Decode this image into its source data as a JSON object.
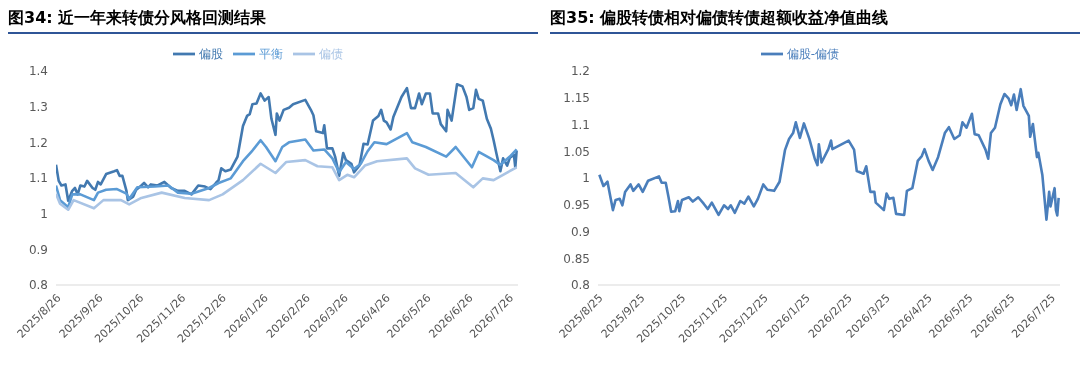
{
  "chart_data": [
    {
      "type": "line",
      "title": "图34: 近一年来转债分风格回测结果",
      "legend": "top",
      "xlim": [
        "2025-08-26",
        "2026-08-02"
      ],
      "xticks": [
        {
          "value": "2025-08-26",
          "label": "2025/8/26"
        },
        {
          "value": "2025-09-26",
          "label": "2025/9/26"
        },
        {
          "value": "2025-10-26",
          "label": "2025/10/26"
        },
        {
          "value": "2025-11-26",
          "label": "2025/11/26"
        },
        {
          "value": "2025-12-26",
          "label": "2025/12/26"
        },
        {
          "value": "2026-01-26",
          "label": "2026/1/26"
        },
        {
          "value": "2026-02-26",
          "label": "2026/2/26"
        },
        {
          "value": "2026-03-26",
          "label": "2026/3/26"
        },
        {
          "value": "2026-04-26",
          "label": "2026/4/26"
        },
        {
          "value": "2026-05-26",
          "label": "2026/5/26"
        },
        {
          "value": "2026-06-26",
          "label": "2026/6/26"
        },
        {
          "value": "2026-07-26",
          "label": "2026/7/26"
        }
      ],
      "ylim": [
        0.8,
        1.4
      ],
      "yticks": [
        0.8,
        0.9,
        1,
        1.1,
        1.2,
        1.3,
        1.4
      ],
      "series": [
        {
          "name": "偏股",
          "color": "#4279b0",
          "x": [
            "2025-08-26",
            "2025-08-28",
            "2025-08-30",
            "2025-09-02",
            "2025-09-04",
            "2025-09-07",
            "2025-09-09",
            "2025-09-11",
            "2025-09-13",
            "2025-09-16",
            "2025-09-18",
            "2025-09-22",
            "2025-09-24",
            "2025-09-26",
            "2025-09-28",
            "2025-10-02",
            "2025-10-08",
            "2025-10-10",
            "2025-10-12",
            "2025-10-14",
            "2025-10-17",
            "2025-10-18",
            "2025-10-22",
            "2025-10-24",
            "2025-10-28",
            "2025-10-30",
            "2025-11-02",
            "2025-11-04",
            "2025-11-09",
            "2025-11-14",
            "2025-11-19",
            "2025-11-24",
            "2025-11-29",
            "2025-12-04",
            "2025-12-09",
            "2025-12-14",
            "2025-12-18",
            "2025-12-22",
            "2025-12-24",
            "2025-12-26",
            "2025-12-29",
            "2026-01-02",
            "2026-01-07",
            "2026-01-11",
            "2026-01-14",
            "2026-01-16",
            "2026-01-18",
            "2026-01-21",
            "2026-01-24",
            "2026-01-27",
            "2026-01-30",
            "2026-02-01",
            "2026-02-04",
            "2026-02-05",
            "2026-02-07",
            "2026-02-10",
            "2026-02-14",
            "2026-02-17",
            "2026-02-26",
            "2026-03-02",
            "2026-03-04",
            "2026-03-06",
            "2026-03-11",
            "2026-03-12",
            "2026-03-14",
            "2026-03-18",
            "2026-03-20",
            "2026-03-23",
            "2026-03-26",
            "2026-03-28",
            "2026-04-01",
            "2026-04-03",
            "2026-04-07",
            "2026-04-10",
            "2026-04-13",
            "2026-04-17",
            "2026-04-21",
            "2026-04-23",
            "2026-04-25",
            "2026-04-27",
            "2026-04-30",
            "2026-05-02",
            "2026-05-08",
            "2026-05-12",
            "2026-05-15",
            "2026-05-18",
            "2026-05-21",
            "2026-05-23",
            "2026-05-26",
            "2026-05-29",
            "2026-05-31",
            "2026-06-04",
            "2026-06-06",
            "2026-06-10",
            "2026-06-11",
            "2026-06-14",
            "2026-06-18",
            "2026-06-22",
            "2026-06-25",
            "2026-06-27",
            "2026-06-30",
            "2026-07-02",
            "2026-07-04",
            "2026-07-07",
            "2026-07-10",
            "2026-07-13",
            "2026-07-15",
            "2026-07-17",
            "2026-07-20",
            "2026-07-22",
            "2026-07-25",
            "2026-07-27",
            "2026-07-30",
            "2026-07-31",
            "2026-08-01"
          ],
          "values": [
            1.137,
            1.092,
            1.079,
            1.082,
            1.036,
            1.064,
            1.072,
            1.054,
            1.079,
            1.076,
            1.092,
            1.072,
            1.067,
            1.089,
            1.082,
            1.111,
            1.119,
            1.122,
            1.106,
            1.106,
            1.064,
            1.038,
            1.048,
            1.066,
            1.079,
            1.086,
            1.074,
            1.082,
            1.079,
            1.089,
            1.072,
            1.064,
            1.064,
            1.054,
            1.079,
            1.076,
            1.069,
            1.086,
            1.094,
            1.127,
            1.119,
            1.124,
            1.16,
            1.246,
            1.274,
            1.279,
            1.307,
            1.309,
            1.337,
            1.317,
            1.327,
            1.266,
            1.221,
            1.281,
            1.261,
            1.291,
            1.297,
            1.307,
            1.319,
            1.292,
            1.276,
            1.231,
            1.226,
            1.248,
            1.183,
            1.183,
            1.16,
            1.106,
            1.17,
            1.15,
            1.14,
            1.116,
            1.135,
            1.196,
            1.194,
            1.261,
            1.274,
            1.291,
            1.261,
            1.256,
            1.236,
            1.271,
            1.327,
            1.352,
            1.296,
            1.296,
            1.337,
            1.307,
            1.337,
            1.337,
            1.281,
            1.281,
            1.251,
            1.231,
            1.291,
            1.261,
            1.363,
            1.357,
            1.327,
            1.291,
            1.296,
            1.347,
            1.322,
            1.317,
            1.266,
            1.238,
            1.206,
            1.17,
            1.119,
            1.155,
            1.135,
            1.157,
            1.165,
            1.13,
            1.177
          ]
        },
        {
          "name": "平衡",
          "color": "#5b9bd5",
          "x": [
            "2025-08-26",
            "2025-08-29",
            "2025-09-04",
            "2025-09-07",
            "2025-09-13",
            "2025-09-23",
            "2025-09-26",
            "2025-10-02",
            "2025-10-10",
            "2025-10-17",
            "2025-10-19",
            "2025-10-25",
            "2025-11-07",
            "2025-11-17",
            "2025-11-24",
            "2025-12-04",
            "2025-12-17",
            "2025-12-24",
            "2026-01-02",
            "2026-01-11",
            "2026-01-18",
            "2026-01-24",
            "2026-01-28",
            "2026-02-04",
            "2026-02-09",
            "2026-02-14",
            "2026-02-26",
            "2026-03-04",
            "2026-03-12",
            "2026-03-18",
            "2026-03-23",
            "2026-03-28",
            "2026-04-03",
            "2026-04-08",
            "2026-04-13",
            "2026-04-18",
            "2026-04-27",
            "2026-05-12",
            "2026-05-16",
            "2026-05-26",
            "2026-06-10",
            "2026-06-17",
            "2026-06-29",
            "2026-07-04",
            "2026-07-15",
            "2026-07-20",
            "2026-07-27",
            "2026-08-01"
          ],
          "values": [
            1.079,
            1.038,
            1.018,
            1.054,
            1.054,
            1.038,
            1.059,
            1.067,
            1.069,
            1.056,
            1.041,
            1.074,
            1.076,
            1.079,
            1.059,
            1.056,
            1.072,
            1.086,
            1.099,
            1.147,
            1.177,
            1.206,
            1.187,
            1.147,
            1.187,
            1.2,
            1.208,
            1.177,
            1.18,
            1.155,
            1.116,
            1.145,
            1.125,
            1.14,
            1.175,
            1.2,
            1.195,
            1.226,
            1.2,
            1.187,
            1.16,
            1.187,
            1.13,
            1.173,
            1.15,
            1.137,
            1.16,
            1.18
          ]
        },
        {
          "name": "偏债",
          "color": "#a9c4e5",
          "x": [
            "2025-08-26",
            "2025-08-29",
            "2025-09-04",
            "2025-09-08",
            "2025-09-23",
            "2025-09-30",
            "2025-10-13",
            "2025-10-19",
            "2025-10-28",
            "2025-11-12",
            "2025-11-29",
            "2025-12-17",
            "2025-12-27",
            "2026-01-11",
            "2026-01-24",
            "2026-02-04",
            "2026-02-12",
            "2026-02-26",
            "2026-03-07",
            "2026-03-18",
            "2026-03-23",
            "2026-03-29",
            "2026-04-03",
            "2026-04-11",
            "2026-04-20",
            "2026-05-12",
            "2026-05-18",
            "2026-05-28",
            "2026-06-17",
            "2026-06-30",
            "2026-07-07",
            "2026-07-15",
            "2026-07-22",
            "2026-08-01"
          ],
          "values": [
            1.056,
            1.028,
            1.011,
            1.038,
            1.015,
            1.038,
            1.038,
            1.026,
            1.044,
            1.059,
            1.044,
            1.038,
            1.054,
            1.094,
            1.14,
            1.114,
            1.145,
            1.15,
            1.133,
            1.13,
            1.094,
            1.109,
            1.102,
            1.135,
            1.147,
            1.155,
            1.127,
            1.109,
            1.114,
            1.074,
            1.099,
            1.094,
            1.109,
            1.13
          ]
        }
      ]
    },
    {
      "type": "line",
      "title": "图35: 偏股转债相对偏债转债超额收益净值曲线",
      "legend": "top",
      "xlim": [
        "2025-08-25",
        "2026-08-01"
      ],
      "xticks": [
        {
          "value": "2025-08-25",
          "label": "2025/8/25"
        },
        {
          "value": "2025-09-25",
          "label": "2025/9/25"
        },
        {
          "value": "2025-10-25",
          "label": "2025/10/25"
        },
        {
          "value": "2025-11-25",
          "label": "2025/11/25"
        },
        {
          "value": "2025-12-25",
          "label": "2025/12/25"
        },
        {
          "value": "2026-01-25",
          "label": "2026/1/25"
        },
        {
          "value": "2026-02-25",
          "label": "2026/2/25"
        },
        {
          "value": "2026-03-25",
          "label": "2026/3/25"
        },
        {
          "value": "2026-04-25",
          "label": "2026/4/25"
        },
        {
          "value": "2026-05-25",
          "label": "2026/5/25"
        },
        {
          "value": "2026-06-25",
          "label": "2026/6/25"
        },
        {
          "value": "2026-07-25",
          "label": "2026/7/25"
        }
      ],
      "ylim": [
        0.8,
        1.2
      ],
      "yticks": [
        0.8,
        0.85,
        0.9,
        0.95,
        1,
        1.05,
        1.1,
        1.15,
        1.2
      ],
      "series": [
        {
          "name": "偏股-偏债",
          "color": "#4a7ebb",
          "x": [
            "2025-08-26",
            "2025-08-29",
            "2025-09-01",
            "2025-09-05",
            "2025-09-07",
            "2025-09-10",
            "2025-09-12",
            "2025-09-14",
            "2025-09-18",
            "2025-09-20",
            "2025-09-24",
            "2025-09-27",
            "2025-10-01",
            "2025-10-09",
            "2025-10-11",
            "2025-10-14",
            "2025-10-16",
            "2025-10-18",
            "2025-10-21",
            "2025-10-23",
            "2025-10-24",
            "2025-10-26",
            "2025-10-31",
            "2025-11-03",
            "2025-11-07",
            "2025-11-11",
            "2025-11-14",
            "2025-11-17",
            "2025-11-22",
            "2025-11-26",
            "2025-11-29",
            "2025-12-01",
            "2025-12-04",
            "2025-12-08",
            "2025-12-11",
            "2025-12-14",
            "2025-12-18",
            "2025-12-21",
            "2025-12-25",
            "2025-12-28",
            "2026-01-02",
            "2026-01-06",
            "2026-01-10",
            "2026-01-13",
            "2026-01-16",
            "2026-01-18",
            "2026-01-21",
            "2026-01-24",
            "2026-01-28",
            "2026-02-01",
            "2026-02-03",
            "2026-02-04",
            "2026-02-06",
            "2026-02-11",
            "2026-02-13",
            "2026-02-14",
            "2026-02-26",
            "2026-03-02",
            "2026-03-04",
            "2026-03-09",
            "2026-03-11",
            "2026-03-14",
            "2026-03-17",
            "2026-03-18",
            "2026-03-24",
            "2026-03-26",
            "2026-03-28",
            "2026-03-31",
            "2026-04-02",
            "2026-04-08",
            "2026-04-10",
            "2026-04-14",
            "2026-04-18",
            "2026-04-21",
            "2026-04-23",
            "2026-04-26",
            "2026-04-29",
            "2026-05-03",
            "2026-05-08",
            "2026-05-11",
            "2026-05-15",
            "2026-05-19",
            "2026-05-21",
            "2026-05-24",
            "2026-05-28",
            "2026-05-30",
            "2026-06-02",
            "2026-06-07",
            "2026-06-09",
            "2026-06-11",
            "2026-06-14",
            "2026-06-18",
            "2026-06-21",
            "2026-06-24",
            "2026-06-26",
            "2026-06-28",
            "2026-06-30",
            "2026-07-03",
            "2026-07-05",
            "2026-07-09",
            "2026-07-10",
            "2026-07-12",
            "2026-07-15",
            "2026-07-16",
            "2026-07-19",
            "2026-07-22",
            "2026-07-24",
            "2026-07-25",
            "2026-07-28",
            "2026-07-29",
            "2026-07-30",
            "2026-07-31"
          ],
          "values": [
            1.006,
            0.985,
            0.993,
            0.94,
            0.959,
            0.961,
            0.949,
            0.974,
            0.988,
            0.976,
            0.988,
            0.974,
            0.995,
            1.003,
            0.991,
            0.991,
            0.965,
            0.937,
            0.938,
            0.957,
            0.938,
            0.959,
            0.964,
            0.956,
            0.964,
            0.952,
            0.942,
            0.954,
            0.931,
            0.949,
            0.942,
            0.949,
            0.935,
            0.957,
            0.952,
            0.965,
            0.947,
            0.961,
            0.988,
            0.978,
            0.976,
            0.993,
            1.052,
            1.073,
            1.084,
            1.104,
            1.075,
            1.102,
            1.073,
            1.036,
            1.024,
            1.063,
            1.029,
            1.054,
            1.07,
            1.054,
            1.07,
            1.053,
            1.013,
            1.008,
            1.022,
            0.974,
            0.974,
            0.954,
            0.94,
            0.971,
            0.961,
            0.963,
            0.933,
            0.931,
            0.976,
            0.981,
            1.032,
            1.041,
            1.054,
            1.032,
            1.015,
            1.039,
            1.084,
            1.095,
            1.073,
            1.08,
            1.104,
            1.094,
            1.12,
            1.082,
            1.08,
            1.053,
            1.036,
            1.084,
            1.094,
            1.138,
            1.157,
            1.149,
            1.136,
            1.156,
            1.127,
            1.166,
            1.135,
            1.116,
            1.077,
            1.101,
            1.039,
            1.047,
            1.005,
            0.922,
            0.974,
            0.947,
            0.981,
            0.94,
            0.93,
            0.963
          ]
        }
      ]
    }
  ]
}
